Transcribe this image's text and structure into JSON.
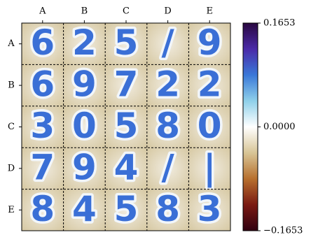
{
  "chart_data": {
    "type": "image-grid",
    "columns": [
      "A",
      "B",
      "C",
      "D",
      "E"
    ],
    "rows": [
      "A",
      "B",
      "C",
      "D",
      "E"
    ],
    "cells": [
      [
        "6",
        "2",
        "5",
        "/",
        "9"
      ],
      [
        "6",
        "9",
        "7",
        "2",
        "2"
      ],
      [
        "3",
        "0",
        "5",
        "8",
        "0"
      ],
      [
        "7",
        "9",
        "4",
        "/",
        "|"
      ],
      [
        "8",
        "4",
        "5",
        "8",
        "3"
      ]
    ],
    "clim": [
      -0.1653,
      0.1653
    ],
    "cticks": [
      {
        "value": 0.1653,
        "label": "0.1653"
      },
      {
        "value": 0,
        "label": "0.0000"
      },
      {
        "value": -0.1653,
        "label": "−0.1653"
      }
    ],
    "colormap": [
      "#2a0840",
      "#4a2aa8",
      "#3a78d8",
      "#8fd0ea",
      "#ffffff",
      "#d8c596",
      "#b8702e",
      "#7a1a12",
      "#300010"
    ]
  }
}
